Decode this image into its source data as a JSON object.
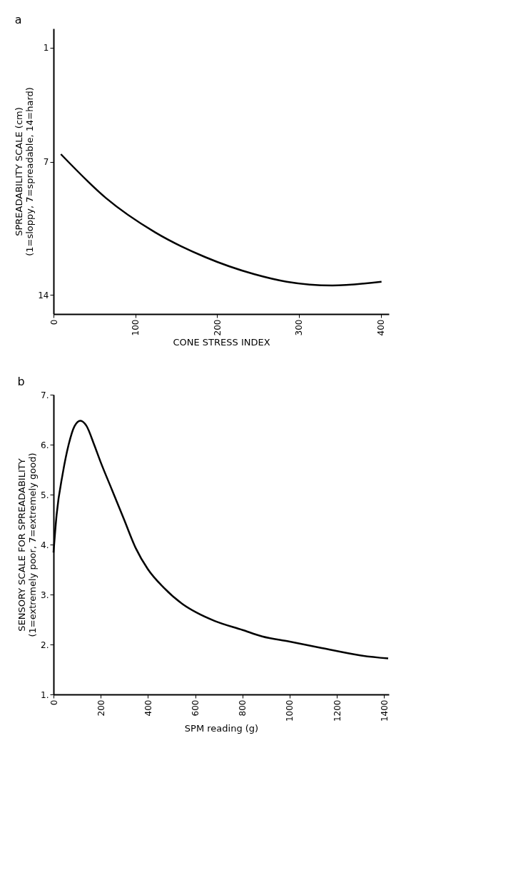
{
  "chart_data": [
    {
      "type": "line",
      "title": "a",
      "xlabel": "CONE STRESS INDEX",
      "ylabel": "SPREADABILITY SCALE  (cm)\n(1=sloppy, 7=spreadable, 14=hard)",
      "xlim": [
        0,
        410
      ],
      "ylim": [
        15,
        0
      ],
      "xticks": [
        0,
        100,
        200,
        300,
        400
      ],
      "yticks": [
        1,
        7,
        14
      ],
      "grid": false,
      "series": [
        {
          "color": "#000000",
          "x": [
            9,
            64,
            124,
            185,
            245,
            285,
            341,
            401
          ],
          "values": [
            6.6,
            8.9,
            10.7,
            12.0,
            12.9,
            13.3,
            13.5,
            13.3
          ]
        }
      ]
    },
    {
      "type": "line",
      "title": "b",
      "xlabel": "SPM reading  (g)",
      "ylabel": "SENSORY SCALE FOR SPREADABILITY\n(1=extremely poor, 7=extremely good)",
      "xlim": [
        0,
        1420
      ],
      "ylim": [
        1,
        7
      ],
      "xticks": [
        0,
        200,
        400,
        600,
        800,
        1000,
        1200,
        1400
      ],
      "yticks": [
        {
          "value": 1,
          "label": "1."
        },
        {
          "value": 2,
          "label": "2."
        },
        {
          "value": 3,
          "label": "3."
        },
        {
          "value": 4,
          "label": "4."
        },
        {
          "value": 5,
          "label": "5."
        },
        {
          "value": 6,
          "label": "6."
        },
        {
          "value": 7,
          "label": "7."
        }
      ],
      "grid": false,
      "series": [
        {
          "color": "#000000",
          "x": [
            0,
            13,
            39,
            64,
            89,
            114,
            139,
            172,
            198,
            248,
            298,
            348,
            399,
            466,
            549,
            605,
            683,
            801,
            884,
            997,
            1136,
            1303,
            1417
          ],
          "values": [
            3.84,
            4.59,
            5.42,
            6.0,
            6.37,
            6.48,
            6.38,
            6.0,
            5.67,
            5.09,
            4.51,
            3.93,
            3.51,
            3.14,
            2.8,
            2.64,
            2.47,
            2.29,
            2.16,
            2.06,
            1.93,
            1.78,
            1.72
          ]
        }
      ]
    }
  ]
}
